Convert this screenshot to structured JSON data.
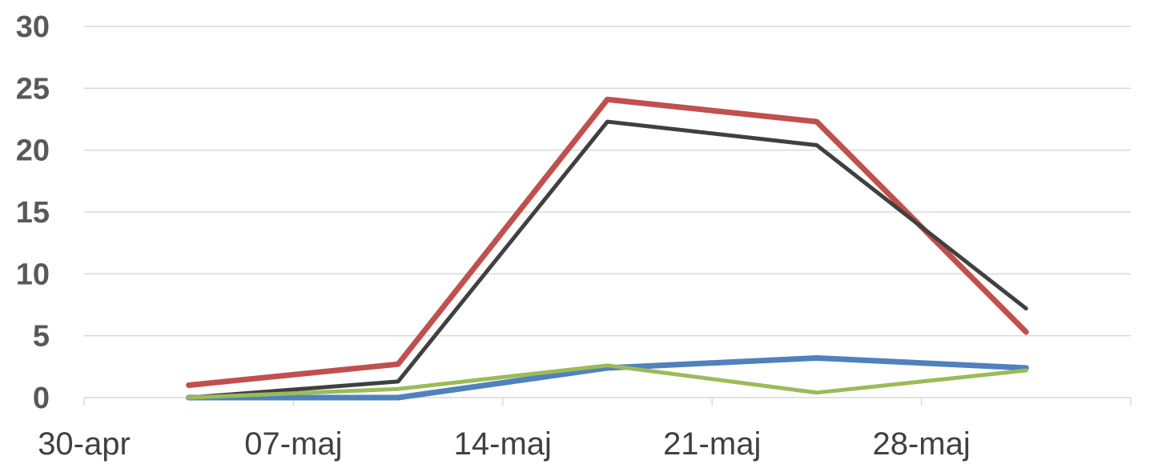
{
  "chart_data": {
    "type": "line",
    "categories": [
      "30-apr",
      "07-maj",
      "14-maj",
      "21-maj",
      "28-maj"
    ],
    "x": [
      0,
      1,
      2,
      3,
      4
    ],
    "ylim": [
      0,
      30
    ],
    "yticks": [
      0,
      5,
      10,
      15,
      20,
      25,
      30
    ],
    "grid": true,
    "legend": "none",
    "series": [
      {
        "color": "#c0504d",
        "values": [
          1.0,
          2.7,
          24.1,
          22.3,
          5.3
        ]
      },
      {
        "color": "#404040",
        "values": [
          0.0,
          1.3,
          22.3,
          20.4,
          7.2
        ]
      },
      {
        "color": "#4f81bd",
        "values": [
          0.0,
          0.0,
          2.4,
          3.2,
          2.4
        ]
      },
      {
        "color": "#9bbb59",
        "values": [
          0.0,
          0.7,
          2.6,
          0.4,
          2.2
        ]
      }
    ]
  }
}
